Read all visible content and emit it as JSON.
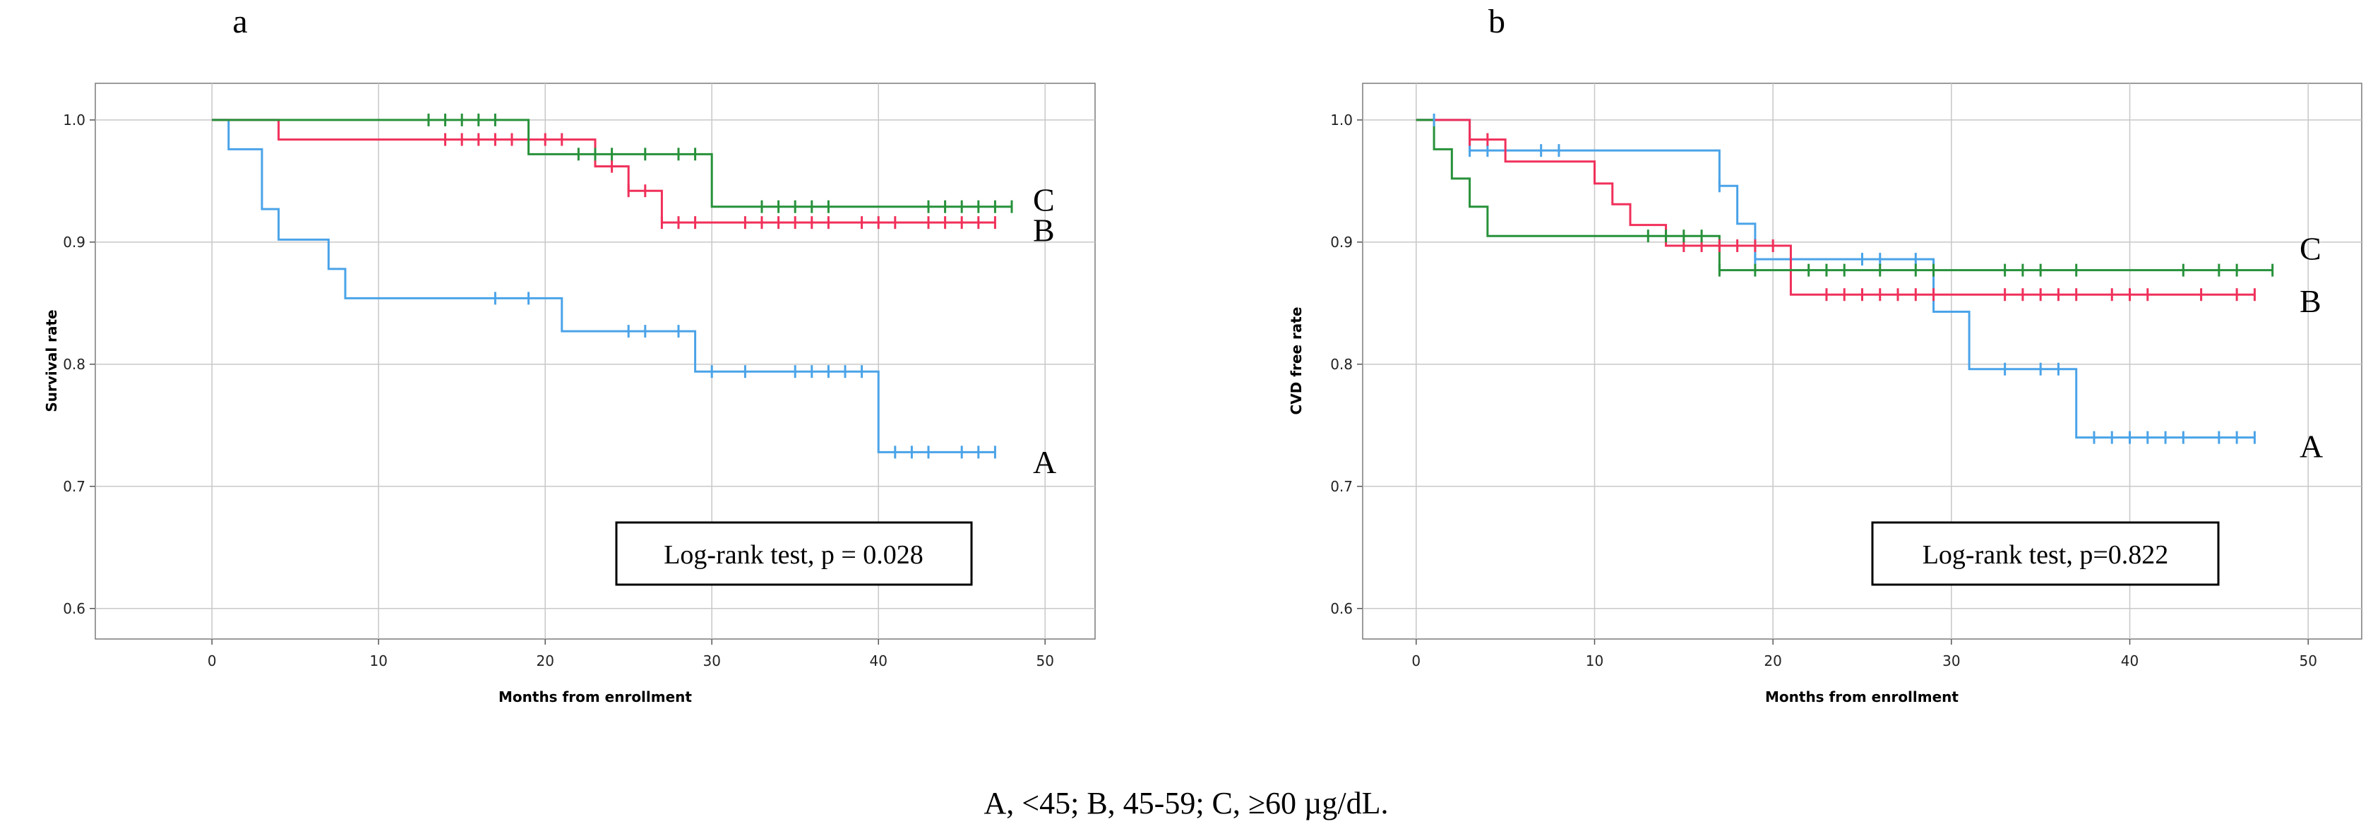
{
  "caption": "A, <45; B, 45-59; C, ≥60 µg/dL.",
  "colors": {
    "A": "#4aa3e8",
    "B": "#f0305a",
    "C": "#27913a",
    "grid": "#c8c8c8",
    "axis": "#555555",
    "text": "#000000"
  },
  "chart_data": [
    {
      "type": "line",
      "panel_label": "a",
      "xlabel": "Months from enrollment",
      "ylabel": "Survival rate",
      "xlim": [
        -7,
        53
      ],
      "ylim": [
        0.575,
        1.03
      ],
      "xticks": [
        0,
        10,
        20,
        30,
        40,
        50
      ],
      "xtick_labels": [
        "0",
        "10",
        "20",
        "30",
        "40",
        "50"
      ],
      "yticks": [
        0.6,
        0.7,
        0.8,
        0.9,
        1.0
      ],
      "ytick_labels": [
        "0.6",
        "0.7",
        "0.8",
        "0.9",
        "1.0"
      ],
      "grid": true,
      "annotation": "Log-rank test, p = 0.028",
      "series": [
        {
          "name": "A",
          "color_key": "A",
          "steps": [
            [
              0,
              1.0
            ],
            [
              1,
              0.976
            ],
            [
              3,
              0.927
            ],
            [
              4,
              0.902
            ],
            [
              7,
              0.878
            ],
            [
              8,
              0.854
            ],
            [
              21,
              0.827
            ],
            [
              29,
              0.794
            ],
            [
              40,
              0.728
            ]
          ],
          "end": 47,
          "censor_x": [
            17,
            19,
            25,
            26,
            28,
            30,
            32,
            35,
            36,
            37,
            38,
            39,
            41,
            42,
            43,
            45,
            46,
            47
          ],
          "curve_label": "A",
          "label_y": 0.72
        },
        {
          "name": "B",
          "color_key": "B",
          "steps": [
            [
              0,
              1.0
            ],
            [
              4,
              0.984
            ],
            [
              23,
              0.962
            ],
            [
              25,
              0.942
            ],
            [
              27,
              0.916
            ]
          ],
          "end": 47,
          "censor_x": [
            14,
            15,
            16,
            17,
            18,
            20,
            21,
            24,
            25,
            26,
            27,
            28,
            29,
            32,
            33,
            34,
            35,
            36,
            37,
            39,
            40,
            41,
            43,
            44,
            45,
            46,
            47
          ],
          "curve_label": "B",
          "label_y": 0.91
        },
        {
          "name": "C",
          "color_key": "C",
          "steps": [
            [
              0,
              1.0
            ],
            [
              19,
              0.972
            ],
            [
              30,
              0.929
            ]
          ],
          "end": 48,
          "censor_x": [
            13,
            14,
            15,
            16,
            17,
            22,
            23,
            24,
            26,
            28,
            29,
            33,
            34,
            35,
            36,
            37,
            43,
            44,
            45,
            46,
            47,
            48
          ],
          "curve_label": "C",
          "label_y": 0.935
        }
      ]
    },
    {
      "type": "line",
      "panel_label": "b",
      "xlabel": "Months from enrollment",
      "ylabel": "CVD free rate",
      "xlim": [
        -3,
        53
      ],
      "ylim": [
        0.575,
        1.03
      ],
      "xticks": [
        0,
        10,
        20,
        30,
        40,
        50
      ],
      "xtick_labels": [
        "0",
        "10",
        "20",
        "30",
        "40",
        "50"
      ],
      "yticks": [
        0.6,
        0.7,
        0.8,
        0.9,
        1.0
      ],
      "ytick_labels": [
        "0.6",
        "0.7",
        "0.8",
        "0.9",
        "1.0"
      ],
      "grid": true,
      "annotation": "Log-rank test, p=0.822",
      "series": [
        {
          "name": "A",
          "color_key": "A",
          "steps": [
            [
              0,
              1.0
            ],
            [
              3,
              0.975
            ],
            [
              17,
              0.946
            ],
            [
              18,
              0.915
            ],
            [
              19,
              0.886
            ],
            [
              29,
              0.843
            ],
            [
              31,
              0.796
            ],
            [
              37,
              0.74
            ]
          ],
          "end": 47,
          "censor_x": [
            1,
            3,
            4,
            7,
            8,
            17,
            19,
            25,
            26,
            28,
            33,
            35,
            36,
            38,
            39,
            40,
            41,
            42,
            43,
            45,
            46,
            47
          ],
          "curve_label": "A",
          "label_y": 0.733
        },
        {
          "name": "B",
          "color_key": "B",
          "steps": [
            [
              0,
              1.0
            ],
            [
              3,
              0.984
            ],
            [
              5,
              0.966
            ],
            [
              10,
              0.948
            ],
            [
              11,
              0.931
            ],
            [
              12,
              0.914
            ],
            [
              14,
              0.897
            ],
            [
              21,
              0.857
            ]
          ],
          "end": 47,
          "censor_x": [
            3,
            4,
            15,
            16,
            17,
            18,
            19,
            20,
            23,
            24,
            25,
            26,
            27,
            28,
            29,
            33,
            34,
            35,
            36,
            37,
            39,
            40,
            41,
            44,
            46,
            47
          ],
          "curve_label": "B",
          "label_y": 0.852
        },
        {
          "name": "C",
          "color_key": "C",
          "steps": [
            [
              0,
              1.0
            ],
            [
              1,
              0.976
            ],
            [
              2,
              0.952
            ],
            [
              3,
              0.929
            ],
            [
              4,
              0.905
            ],
            [
              17,
              0.877
            ]
          ],
          "end": 48,
          "censor_x": [
            13,
            14,
            15,
            16,
            17,
            19,
            22,
            23,
            24,
            26,
            28,
            29,
            33,
            34,
            35,
            37,
            43,
            45,
            46,
            48
          ],
          "curve_label": "C",
          "label_y": 0.895
        }
      ]
    }
  ]
}
